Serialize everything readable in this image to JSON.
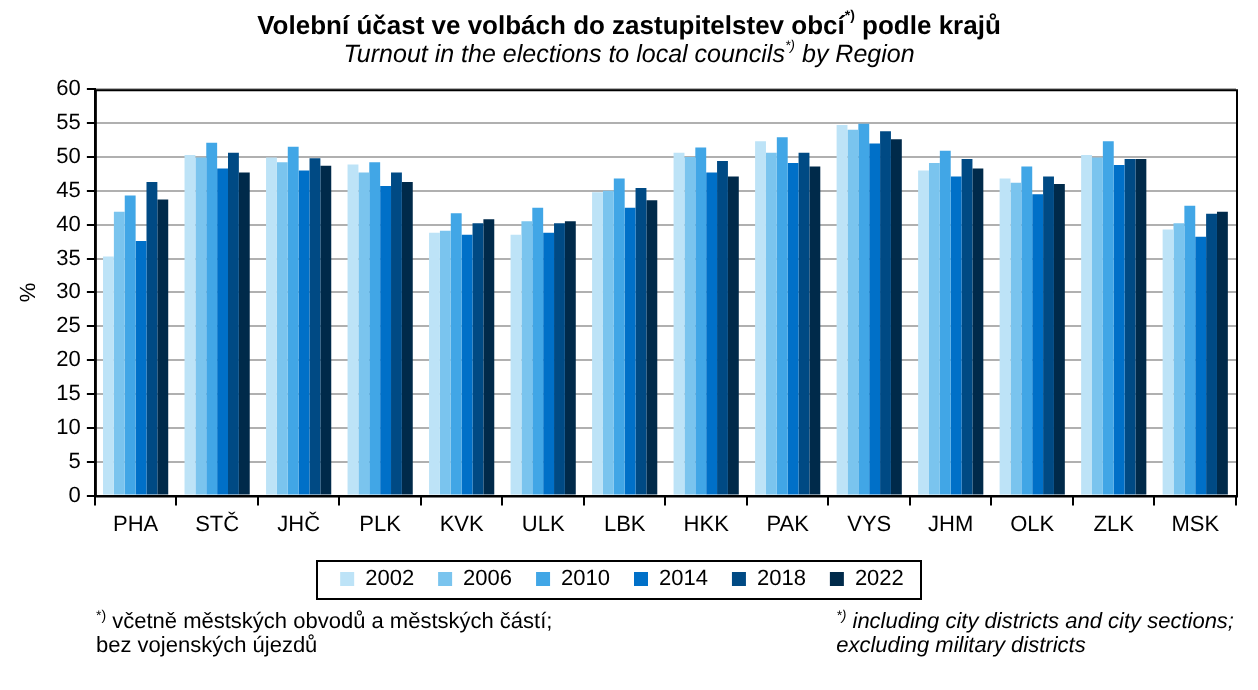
{
  "chart_data": {
    "type": "bar",
    "title": "Volební účast ve volbách do zastupitelstev obcí$^{*)}$ podle krajů",
    "subtitle": "Turnout in the elections to local councils$^{*)}$ by Region",
    "ylabel": "%",
    "categories": [
      "PHA",
      "STČ",
      "JHČ",
      "PLK",
      "KVK",
      "ULK",
      "LBK",
      "HKK",
      "PAK",
      "VYS",
      "JHM",
      "OLK",
      "ZLK",
      "MSK"
    ],
    "series": [
      {
        "name": "2002",
        "color": "#bde3f7",
        "values": [
          35.3,
          50.3,
          49.9,
          48.9,
          38.8,
          38.5,
          44.8,
          50.6,
          52.3,
          54.7,
          48.0,
          46.8,
          50.3,
          39.3
        ]
      },
      {
        "name": "2006",
        "color": "#7ac4ee",
        "values": [
          41.9,
          49.9,
          49.2,
          47.7,
          39.1,
          40.5,
          45.0,
          50.0,
          50.6,
          54.0,
          49.1,
          46.2,
          49.9,
          40.2
        ]
      },
      {
        "name": "2010",
        "color": "#41a6e6",
        "values": [
          44.3,
          52.1,
          51.5,
          49.2,
          41.7,
          42.5,
          46.8,
          51.4,
          52.9,
          54.9,
          50.9,
          48.6,
          52.3,
          42.8
        ]
      },
      {
        "name": "2014",
        "color": "#0070c8",
        "values": [
          37.6,
          48.3,
          48.0,
          45.7,
          38.5,
          38.8,
          42.5,
          47.7,
          49.1,
          52.0,
          47.1,
          44.5,
          48.8,
          38.2
        ]
      },
      {
        "name": "2018",
        "color": "#004a84",
        "values": [
          46.3,
          50.6,
          49.8,
          47.7,
          40.2,
          40.2,
          45.4,
          49.4,
          50.6,
          53.8,
          49.7,
          47.1,
          49.7,
          41.6
        ]
      },
      {
        "name": "2022",
        "color": "#002a4a",
        "values": [
          43.7,
          47.7,
          48.7,
          46.3,
          40.8,
          40.5,
          43.6,
          47.1,
          48.6,
          52.6,
          48.3,
          46.0,
          49.7,
          41.9
        ]
      }
    ],
    "ylim": [
      0,
      60
    ],
    "yticks": [
      0,
      5,
      10,
      15,
      20,
      25,
      30,
      35,
      40,
      45,
      50,
      55,
      60
    ],
    "grid": "y",
    "legend": "bottom",
    "annotations": [
      "$^{*)}$ včetně městských obvodů a městských částí;\nbez vojenských újezdů",
      "$^{*)}$ including city districts and city sections;\nexcluding military districts"
    ]
  }
}
